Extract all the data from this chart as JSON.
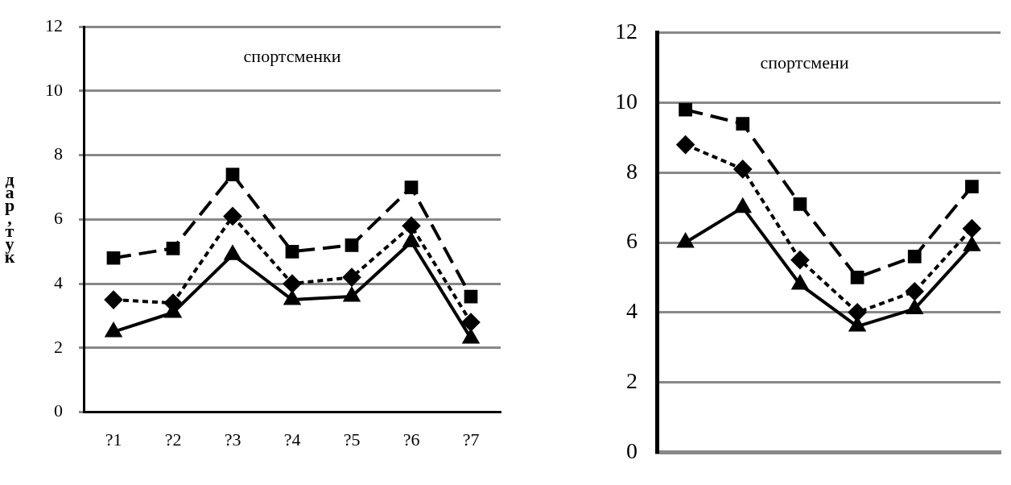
{
  "chart_data": [
    {
      "type": "line",
      "title": "спортсменки",
      "ylabel": "дар,тук",
      "categories": [
        "?1",
        "?2",
        "?3",
        "?4",
        "?5",
        "?6",
        "?7"
      ],
      "ylim": [
        0,
        12
      ],
      "yticks": [
        0,
        2,
        4,
        6,
        8,
        10,
        12
      ],
      "grid": "y",
      "legend": false,
      "series": [
        {
          "color": "#000000",
          "marker": "square",
          "line_style": "dashed",
          "values": [
            4.8,
            5.1,
            7.4,
            5.0,
            5.2,
            7.0,
            3.6
          ]
        },
        {
          "color": "#000000",
          "marker": "diamond",
          "line_style": "dotted",
          "values": [
            3.5,
            3.4,
            6.1,
            4.0,
            4.2,
            5.8,
            2.8
          ]
        },
        {
          "color": "#000000",
          "marker": "triangle",
          "line_style": "solid",
          "values": [
            2.5,
            3.1,
            4.9,
            3.5,
            3.6,
            5.3,
            2.3
          ]
        }
      ]
    },
    {
      "type": "line",
      "title": "спортсмени",
      "categories": [
        null,
        null,
        null,
        null,
        null,
        null
      ],
      "ylim": [
        0,
        12
      ],
      "yticks": [
        0,
        2,
        4,
        6,
        8,
        10,
        12
      ],
      "grid": "y",
      "legend": false,
      "tick_labels": "y",
      "series": [
        {
          "color": "#000000",
          "marker": "square",
          "line_style": "dashed",
          "values": [
            9.8,
            9.4,
            7.1,
            5.0,
            5.6,
            7.6
          ]
        },
        {
          "color": "#000000",
          "marker": "diamond",
          "line_style": "dotted",
          "values": [
            8.8,
            8.1,
            5.5,
            4.0,
            4.6,
            6.4
          ]
        },
        {
          "color": "#000000",
          "marker": "triangle",
          "line_style": "solid",
          "values": [
            6.0,
            7.0,
            4.8,
            3.6,
            4.1,
            5.9
          ]
        }
      ]
    }
  ]
}
